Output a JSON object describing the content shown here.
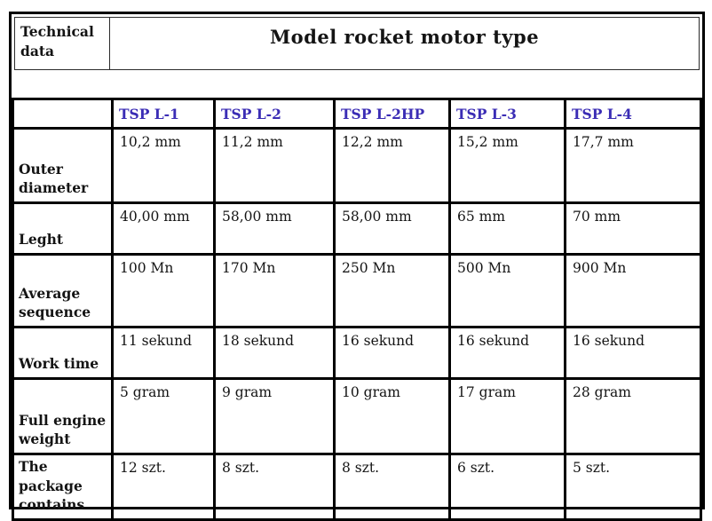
{
  "table": {
    "corner_label": "Technical data",
    "title": "Model rocket motor type",
    "columns": [
      "TSP L-1",
      "TSP L-2",
      "TSP L-2HP",
      "TSP L-3",
      "TSP L-4"
    ],
    "rows": [
      {
        "label": "Outer diameter",
        "values": [
          "10,2 mm",
          "11,2 mm",
          "12,2 mm",
          "15,2 mm",
          "17,7 mm"
        ]
      },
      {
        "label": "Leght",
        "values": [
          "40,00 mm",
          "58,00 mm",
          "58,00 mm",
          "65 mm",
          "70 mm"
        ]
      },
      {
        "label": "Average sequence",
        "values": [
          "100 Mn",
          "170 Mn",
          "250 Mn",
          "500 Mn",
          "900 Mn"
        ]
      },
      {
        "label": "Work time",
        "values": [
          "11 sekund",
          "18 sekund",
          "16 sekund",
          "16 sekund",
          "16 sekund"
        ]
      },
      {
        "label": "Full engine weight",
        "values": [
          "5 gram",
          "9 gram",
          "10 gram",
          "17 gram",
          "28 gram"
        ]
      },
      {
        "label": "The package contains",
        "values": [
          "12 szt.",
          "8 szt.",
          "8 szt.",
          "6 szt.",
          "5 szt."
        ]
      }
    ],
    "colors": {
      "header_text": "#3b2db5",
      "body_text": "#141414",
      "border": "#000000"
    }
  }
}
